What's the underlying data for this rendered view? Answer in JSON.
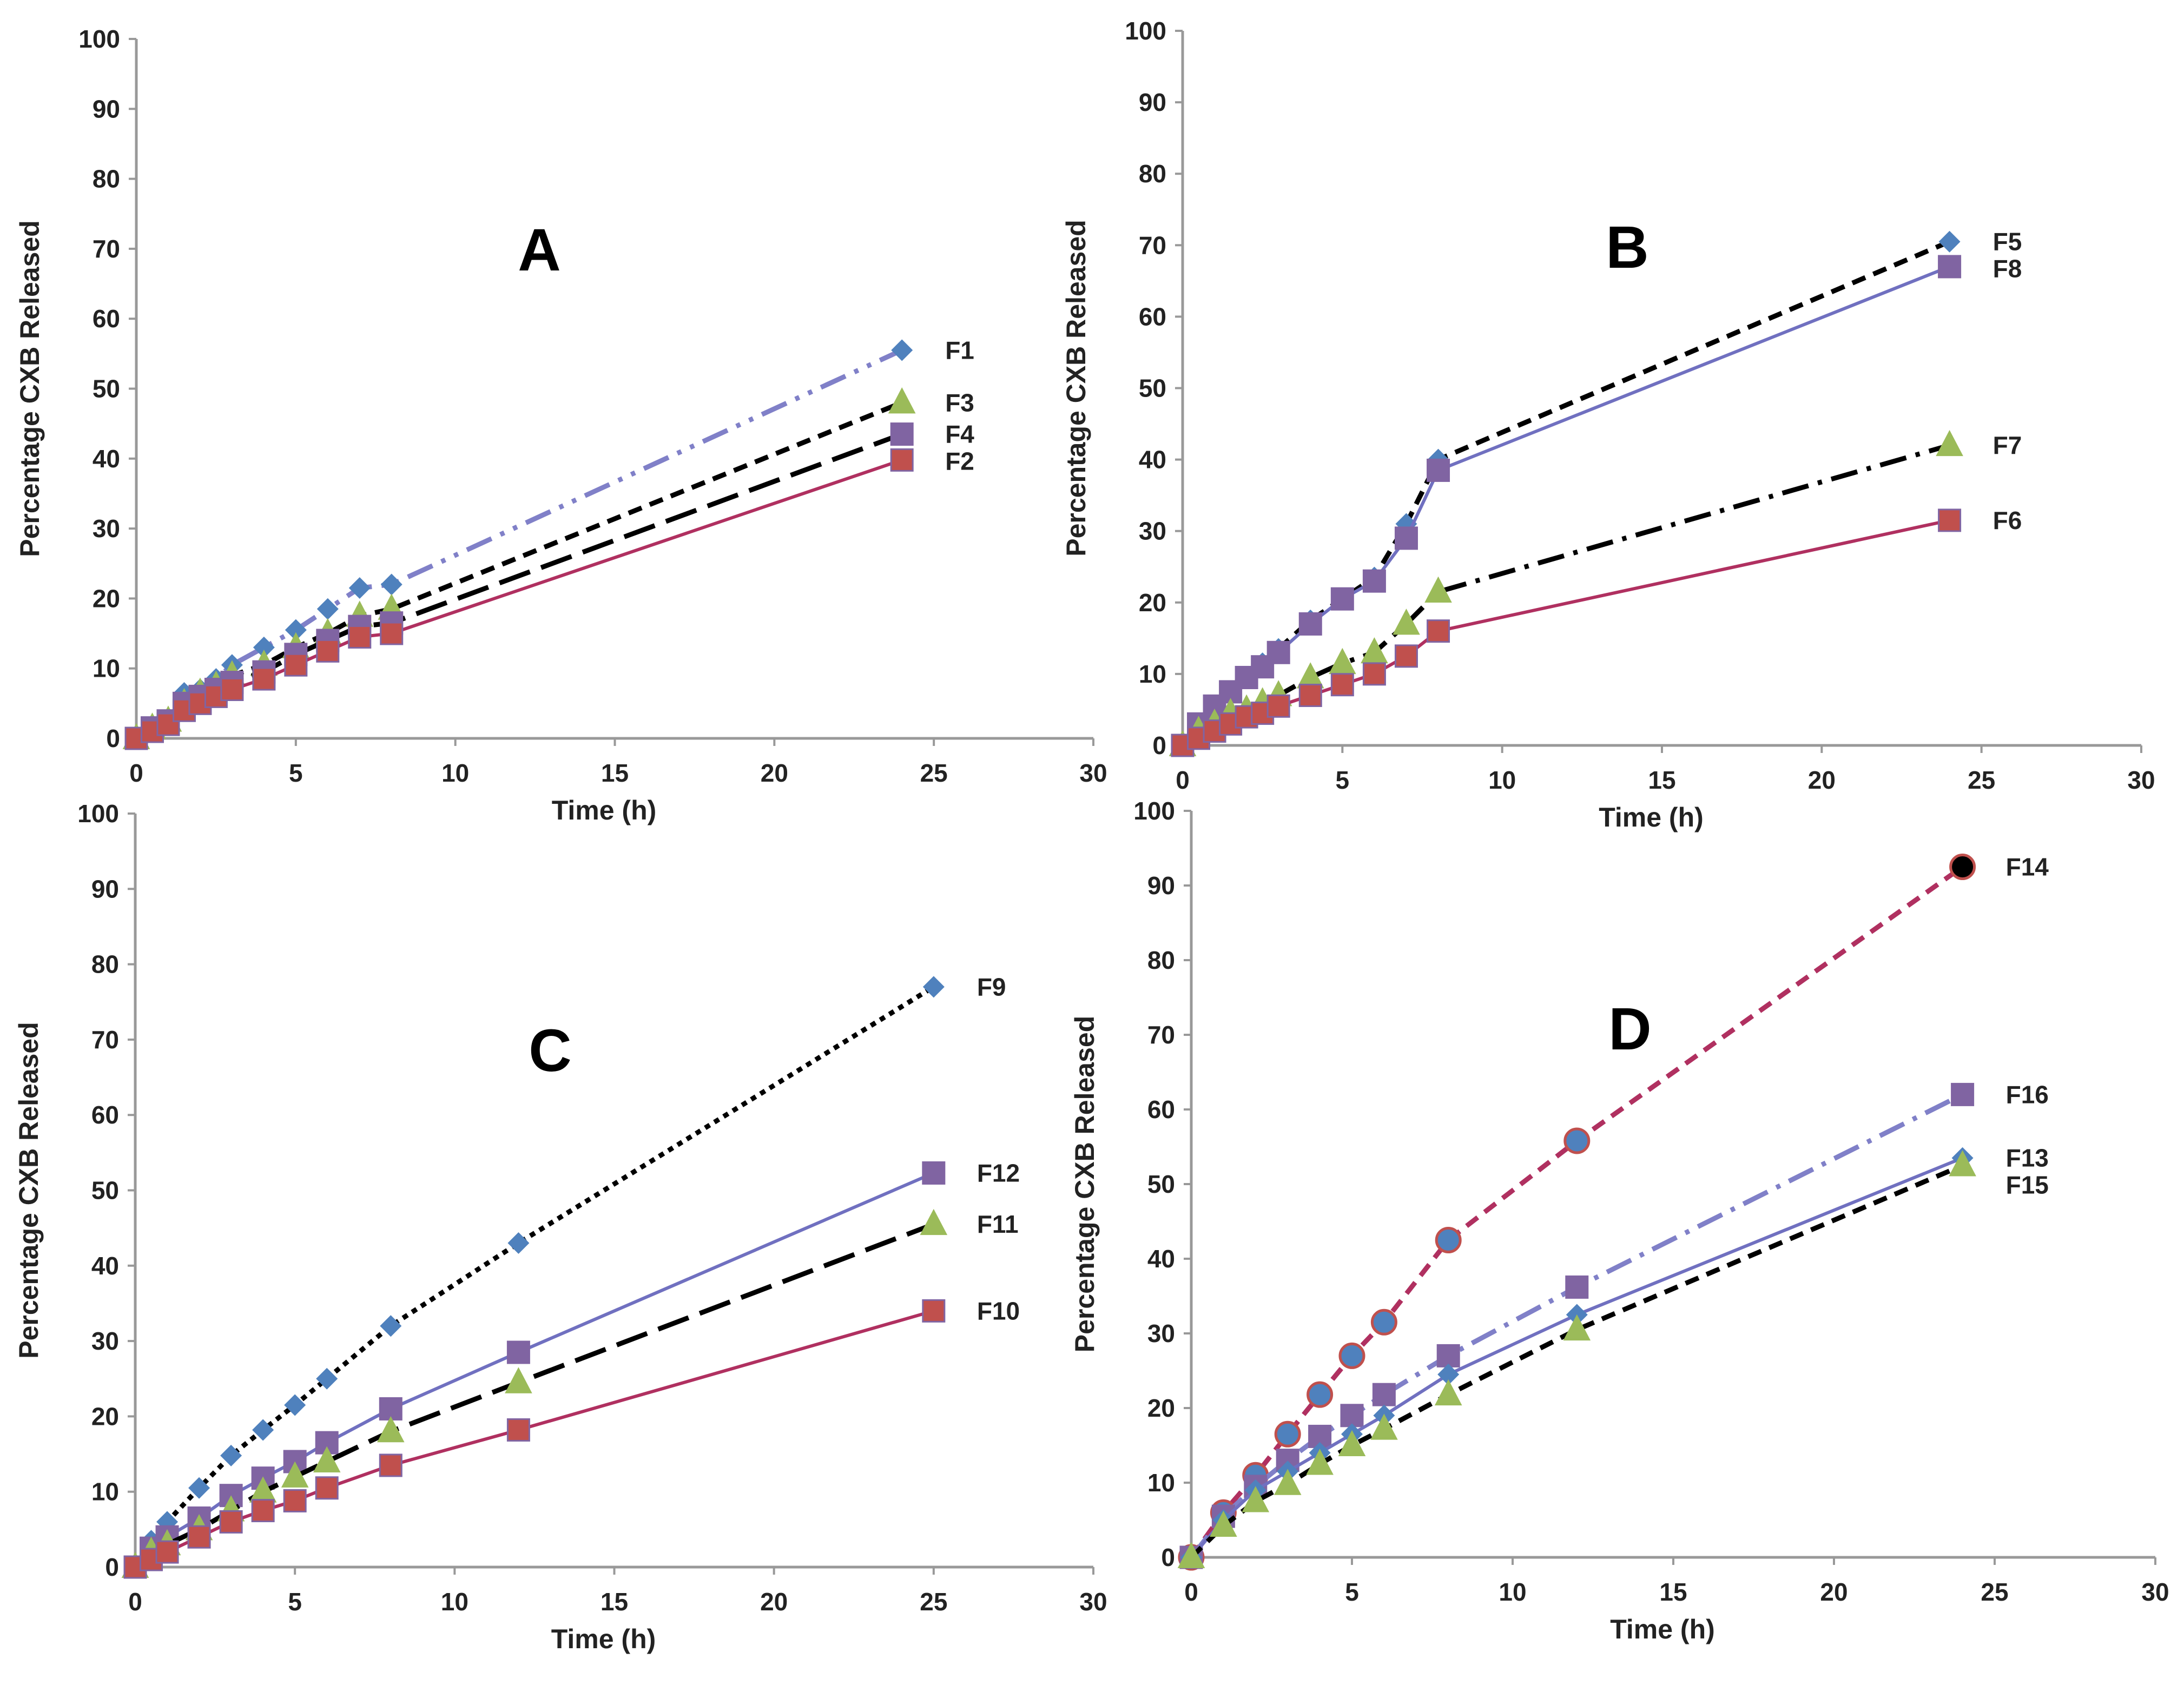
{
  "chart_data": [
    {
      "type": "line",
      "panel_label": "A",
      "xlabel": "Time (h)",
      "ylabel": "Percentage CXB Released",
      "xlim": [
        0,
        30
      ],
      "ylim": [
        0,
        100
      ],
      "xticks": [
        0,
        5,
        10,
        15,
        20,
        25,
        30
      ],
      "yticks": [
        0,
        10,
        20,
        30,
        40,
        50,
        60,
        70,
        80,
        90,
        100
      ],
      "x": [
        0,
        0.5,
        1,
        1.5,
        2,
        2.5,
        3,
        4,
        5,
        6,
        7,
        8,
        24
      ],
      "series": [
        {
          "name": "F1",
          "values": [
            0,
            1.5,
            2.5,
            6.5,
            7,
            8.5,
            10.5,
            13,
            15.5,
            18.5,
            21.5,
            22,
            55.5
          ],
          "line": "#8080c8",
          "dash": "dashdotdot",
          "marker": "diamond",
          "marker_color": "#4f81bd"
        },
        {
          "name": "F3",
          "values": [
            0,
            1.5,
            2.5,
            5,
            6.5,
            7.5,
            9,
            10.5,
            13,
            15,
            17.5,
            18.5,
            48
          ],
          "line": "#000000",
          "dash": "short",
          "marker": "triangle",
          "marker_color": "#9bbb59"
        },
        {
          "name": "F4",
          "values": [
            0,
            1.5,
            2.5,
            5,
            6,
            7,
            8,
            9.5,
            12,
            14,
            16,
            16.5,
            43.5
          ],
          "line": "#000000",
          "dash": "long",
          "marker": "square",
          "marker_color": "#8064a2"
        },
        {
          "name": "F2",
          "values": [
            0,
            1,
            2,
            4,
            5,
            6,
            7,
            8.5,
            10.5,
            12.5,
            14.5,
            15,
            39.8
          ],
          "line": "#b03060",
          "dash": "solid",
          "marker": "square",
          "marker_color": "#c0504d"
        }
      ]
    },
    {
      "type": "line",
      "panel_label": "B",
      "xlabel": "Time (h)",
      "ylabel": "Percentage CXB Released",
      "xlim": [
        0,
        30
      ],
      "ylim": [
        0,
        100
      ],
      "xticks": [
        0,
        5,
        10,
        15,
        20,
        25,
        30
      ],
      "yticks": [
        0,
        10,
        20,
        30,
        40,
        50,
        60,
        70,
        80,
        90,
        100
      ],
      "x": [
        0,
        0.5,
        1,
        1.5,
        2,
        2.5,
        3,
        4,
        5,
        6,
        7,
        8,
        24
      ],
      "series": [
        {
          "name": "F5",
          "values": [
            0,
            3,
            5.5,
            7.5,
            9.5,
            11.5,
            13.5,
            17.5,
            20.5,
            23.5,
            31,
            40,
            70.5
          ],
          "line": "#000000",
          "dash": "short",
          "marker": "diamond",
          "marker_color": "#4f81bd"
        },
        {
          "name": "F8",
          "values": [
            0,
            3,
            5.5,
            7.5,
            9.5,
            11,
            13,
            17,
            20.5,
            23,
            29,
            38.5,
            67
          ],
          "line": "#7070c0",
          "dash": "solid",
          "marker": "square",
          "marker_color": "#8064a2"
        },
        {
          "name": "F7",
          "values": [
            0,
            2,
            3,
            4.5,
            5,
            6,
            7,
            9.5,
            11.5,
            13,
            17,
            21.5,
            42
          ],
          "line": "#000000",
          "dash": "dashdot",
          "marker": "triangle",
          "marker_color": "#9bbb59"
        },
        {
          "name": "F6",
          "values": [
            0,
            1,
            2,
            3,
            4,
            4.5,
            5.5,
            7,
            8.5,
            10,
            12.5,
            16,
            31.5
          ],
          "line": "#b03060",
          "dash": "solid",
          "marker": "square",
          "marker_color": "#c0504d"
        }
      ]
    },
    {
      "type": "line",
      "panel_label": "C",
      "xlabel": "Time (h)",
      "ylabel": "Percentage CXB Released",
      "xlim": [
        0,
        30
      ],
      "ylim": [
        0,
        100
      ],
      "xticks": [
        0,
        5,
        10,
        15,
        20,
        25,
        30
      ],
      "yticks": [
        0,
        10,
        20,
        30,
        40,
        50,
        60,
        70,
        80,
        90,
        100
      ],
      "x": [
        0,
        0.5,
        1,
        2,
        3,
        4,
        5,
        6,
        8,
        12,
        25
      ],
      "series": [
        {
          "name": "F9",
          "values": [
            0,
            3.5,
            6,
            10.5,
            14.8,
            18.2,
            21.5,
            25,
            32,
            43,
            77
          ],
          "line": "#000000",
          "dash": "dotted",
          "marker": "diamond",
          "marker_color": "#4f81bd"
        },
        {
          "name": "F12",
          "values": [
            0,
            2.5,
            4,
            6.5,
            9.5,
            11.8,
            14,
            16.5,
            21,
            28.5,
            52.3
          ],
          "line": "#7070c0",
          "dash": "solid",
          "marker": "square",
          "marker_color": "#8064a2"
        },
        {
          "name": "F11",
          "values": [
            0,
            2,
            3,
            5,
            7.5,
            10,
            12,
            14,
            18,
            24.5,
            45.5
          ],
          "line": "#000000",
          "dash": "long",
          "marker": "triangle",
          "marker_color": "#9bbb59"
        },
        {
          "name": "F10",
          "values": [
            0,
            1,
            2,
            4,
            6,
            7.5,
            8.8,
            10.5,
            13.5,
            18.2,
            34
          ],
          "line": "#b03060",
          "dash": "solid",
          "marker": "square",
          "marker_color": "#c0504d"
        }
      ]
    },
    {
      "type": "line",
      "panel_label": "D",
      "xlabel": "Time (h)",
      "ylabel": "Percentage CXB Released",
      "xlim": [
        0,
        30
      ],
      "ylim": [
        0,
        100
      ],
      "xticks": [
        0,
        5,
        10,
        15,
        20,
        25,
        30
      ],
      "yticks": [
        0,
        10,
        20,
        30,
        40,
        50,
        60,
        70,
        80,
        90,
        100
      ],
      "x": [
        0,
        1,
        2,
        3,
        4,
        5,
        6,
        8,
        12,
        24
      ],
      "series": [
        {
          "name": "F14",
          "values": [
            0,
            6,
            11,
            16.5,
            21.8,
            27,
            31.5,
            42.5,
            55.8,
            92.5
          ],
          "line": "#b03060",
          "dash": "short",
          "marker": "circle",
          "marker_color": "#4f81bd"
        },
        {
          "name": "F16",
          "values": [
            0,
            5.5,
            9.5,
            13,
            16.2,
            19,
            21.8,
            27,
            36.2,
            62
          ],
          "line": "#8080c8",
          "dash": "dashdot",
          "marker": "square",
          "marker_color": "#8064a2"
        },
        {
          "name": "F13",
          "values": [
            0,
            5,
            9,
            11.5,
            14,
            16.5,
            19,
            24.5,
            32.5,
            53.5
          ],
          "line": "#7070c0",
          "dash": "solid",
          "marker": "diamond",
          "marker_color": "#4f81bd"
        },
        {
          "name": "F15",
          "values": [
            0,
            4.2,
            7.5,
            9.8,
            12.5,
            15,
            17.2,
            21.8,
            30.5,
            52.5
          ],
          "line": "#000000",
          "dash": "short",
          "marker": "triangle",
          "marker_color": "#9bbb59"
        }
      ]
    }
  ]
}
